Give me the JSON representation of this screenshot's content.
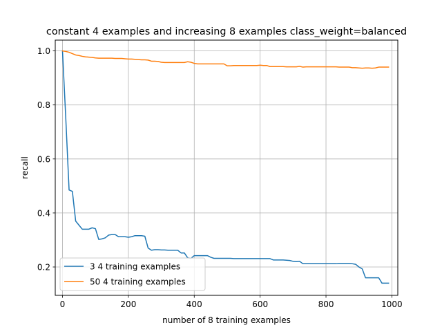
{
  "chart_data": {
    "type": "line",
    "title": "constant 4 examples and increasing 8 examples class_weight=balanced",
    "xlabel": "number of 8 training examples",
    "ylabel": "recall",
    "xlim": [
      -22,
      1018
    ],
    "ylim": [
      0.095,
      1.04
    ],
    "xticks": [
      0,
      200,
      400,
      600,
      800,
      1000
    ],
    "xtick_labels": [
      "0",
      "200",
      "400",
      "600",
      "800",
      "1000"
    ],
    "yticks": [
      0.2,
      0.4,
      0.6,
      0.8,
      1.0
    ],
    "ytick_labels": [
      "0.2",
      "0.4",
      "0.6",
      "0.8",
      "1.0"
    ],
    "grid": true,
    "legend_position": "lower-left",
    "series": [
      {
        "name": "3 4 training examples",
        "color": "#1f77b4",
        "x": [
          0,
          10,
          20,
          30,
          40,
          50,
          60,
          70,
          80,
          90,
          100,
          110,
          120,
          130,
          140,
          150,
          160,
          170,
          180,
          190,
          200,
          210,
          220,
          230,
          240,
          250,
          260,
          270,
          280,
          290,
          300,
          310,
          320,
          330,
          340,
          350,
          360,
          370,
          380,
          390,
          400,
          410,
          420,
          430,
          440,
          450,
          460,
          470,
          480,
          490,
          500,
          510,
          520,
          530,
          540,
          550,
          560,
          570,
          580,
          590,
          600,
          610,
          620,
          630,
          640,
          650,
          660,
          670,
          680,
          690,
          700,
          710,
          720,
          730,
          740,
          750,
          760,
          770,
          780,
          790,
          800,
          810,
          820,
          830,
          840,
          850,
          860,
          870,
          880,
          890,
          900,
          910,
          920,
          930,
          940,
          950,
          960,
          970,
          980,
          990
        ],
        "values": [
          1.0,
          0.75,
          0.485,
          0.48,
          0.37,
          0.355,
          0.34,
          0.34,
          0.34,
          0.345,
          0.342,
          0.302,
          0.304,
          0.308,
          0.318,
          0.32,
          0.32,
          0.312,
          0.312,
          0.312,
          0.31,
          0.312,
          0.316,
          0.316,
          0.316,
          0.314,
          0.27,
          0.262,
          0.264,
          0.264,
          0.263,
          0.263,
          0.262,
          0.262,
          0.262,
          0.262,
          0.252,
          0.252,
          0.234,
          0.232,
          0.242,
          0.242,
          0.242,
          0.242,
          0.242,
          0.236,
          0.232,
          0.232,
          0.232,
          0.232,
          0.232,
          0.232,
          0.231,
          0.231,
          0.231,
          0.231,
          0.231,
          0.231,
          0.231,
          0.231,
          0.231,
          0.231,
          0.231,
          0.231,
          0.226,
          0.226,
          0.226,
          0.226,
          0.225,
          0.224,
          0.221,
          0.22,
          0.221,
          0.212,
          0.212,
          0.212,
          0.212,
          0.212,
          0.212,
          0.212,
          0.212,
          0.212,
          0.212,
          0.212,
          0.213,
          0.213,
          0.213,
          0.213,
          0.212,
          0.21,
          0.2,
          0.193,
          0.16,
          0.16,
          0.16,
          0.16,
          0.16,
          0.14,
          0.14,
          0.14
        ]
      },
      {
        "name": "50 4 training examples",
        "color": "#ff7f0e",
        "x": [
          0,
          10,
          20,
          30,
          40,
          50,
          60,
          70,
          80,
          90,
          100,
          110,
          120,
          130,
          140,
          150,
          160,
          170,
          180,
          190,
          200,
          210,
          220,
          230,
          240,
          250,
          260,
          270,
          280,
          290,
          300,
          310,
          320,
          330,
          340,
          350,
          360,
          370,
          380,
          390,
          400,
          410,
          420,
          430,
          440,
          450,
          460,
          470,
          480,
          490,
          500,
          510,
          520,
          530,
          540,
          550,
          560,
          570,
          580,
          590,
          600,
          610,
          620,
          630,
          640,
          650,
          660,
          670,
          680,
          690,
          700,
          710,
          720,
          730,
          740,
          750,
          760,
          770,
          780,
          790,
          800,
          810,
          820,
          830,
          840,
          850,
          860,
          870,
          880,
          890,
          900,
          910,
          920,
          930,
          940,
          950,
          960,
          970,
          980,
          990
        ],
        "values": [
          1.0,
          0.998,
          0.995,
          0.99,
          0.985,
          0.983,
          0.98,
          0.978,
          0.977,
          0.976,
          0.974,
          0.973,
          0.973,
          0.973,
          0.973,
          0.973,
          0.972,
          0.972,
          0.972,
          0.971,
          0.97,
          0.97,
          0.969,
          0.968,
          0.967,
          0.967,
          0.966,
          0.962,
          0.962,
          0.961,
          0.958,
          0.957,
          0.957,
          0.957,
          0.957,
          0.957,
          0.957,
          0.957,
          0.96,
          0.958,
          0.954,
          0.952,
          0.952,
          0.952,
          0.952,
          0.952,
          0.952,
          0.952,
          0.952,
          0.952,
          0.945,
          0.945,
          0.946,
          0.946,
          0.946,
          0.946,
          0.946,
          0.946,
          0.946,
          0.946,
          0.947,
          0.946,
          0.946,
          0.942,
          0.942,
          0.942,
          0.942,
          0.942,
          0.941,
          0.941,
          0.941,
          0.941,
          0.943,
          0.94,
          0.941,
          0.941,
          0.941,
          0.941,
          0.941,
          0.941,
          0.941,
          0.941,
          0.941,
          0.941,
          0.94,
          0.94,
          0.94,
          0.94,
          0.938,
          0.938,
          0.937,
          0.936,
          0.937,
          0.937,
          0.936,
          0.937,
          0.94,
          0.94,
          0.94,
          0.94
        ]
      }
    ]
  }
}
